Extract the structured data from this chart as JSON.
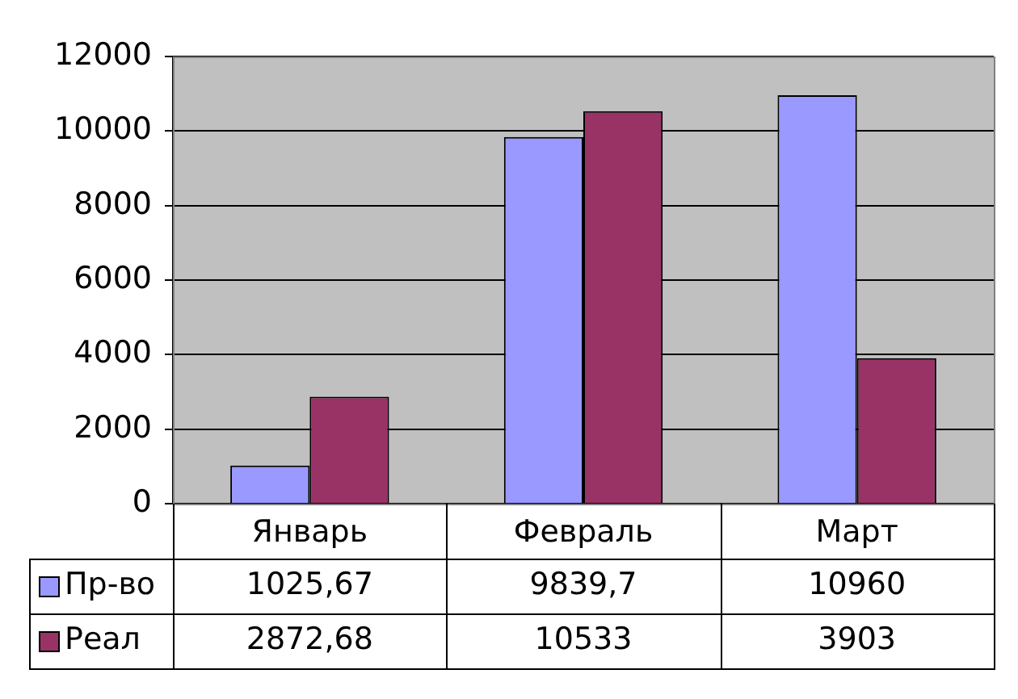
{
  "chart_data": {
    "type": "bar",
    "categories": [
      "Январь",
      "Февраль",
      "Март"
    ],
    "series": [
      {
        "name": "Пр-во",
        "color": "#9999ff",
        "values": [
          1025.67,
          9839.7,
          10960
        ],
        "value_labels": [
          "1025,67",
          "9839,7",
          "10960"
        ]
      },
      {
        "name": "Реал",
        "color": "#993366",
        "values": [
          2872.68,
          10533,
          3903
        ],
        "value_labels": [
          "2872,68",
          "10533",
          "3903"
        ]
      }
    ],
    "ylim": [
      0,
      12000
    ],
    "yticks": [
      0,
      2000,
      4000,
      6000,
      8000,
      10000,
      12000
    ],
    "grid": "y",
    "legend": "bottom"
  }
}
